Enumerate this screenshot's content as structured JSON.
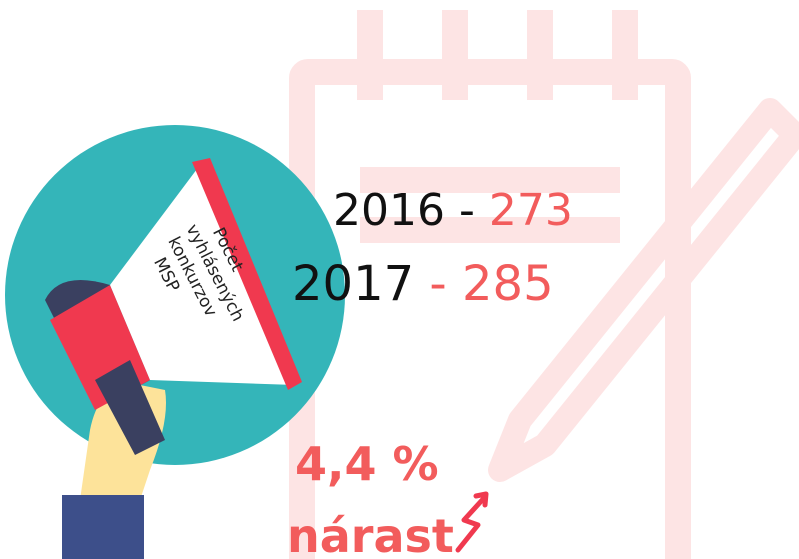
{
  "megaphone": {
    "label_lines": [
      "Počet",
      "vyhlásených",
      "konkurzov",
      "MSP"
    ]
  },
  "stats": [
    {
      "year": "2016",
      "separator": "-",
      "value": "273"
    },
    {
      "year": "2017",
      "separator": "-",
      "value": "285"
    }
  ],
  "growth": {
    "value": "4,4 %",
    "label": "nárast"
  }
}
